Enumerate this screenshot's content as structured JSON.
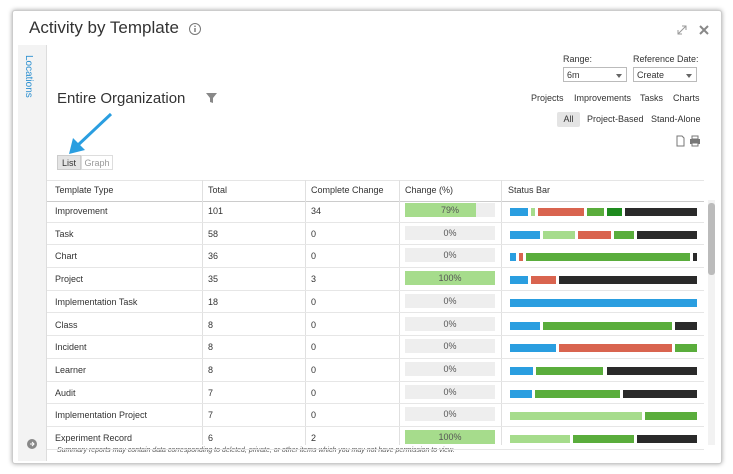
{
  "header": {
    "title": "Activity by Template"
  },
  "sidebar": {
    "label": "Locations"
  },
  "scope": {
    "title": "Entire Organization"
  },
  "controls": {
    "range_label": "Range:",
    "range_value": "6m",
    "reference_label": "Reference Date:",
    "reference_value": "Create",
    "links": [
      "Projects",
      "Improvements",
      "Tasks",
      "Charts"
    ],
    "filters": [
      "All",
      "Project-Based",
      "Stand-Alone"
    ]
  },
  "view_toggle": [
    "List",
    "Graph"
  ],
  "table": {
    "columns": [
      "Template Type",
      "Total",
      "Complete Change",
      "Change (%)",
      "Status Bar"
    ],
    "rows": [
      [
        "Improvement",
        "101",
        "34",
        "79%"
      ],
      [
        "Task",
        "58",
        "0",
        "0%"
      ],
      [
        "Chart",
        "36",
        "0",
        "0%"
      ],
      [
        "Project",
        "35",
        "3",
        "100%"
      ],
      [
        "Implementation Task",
        "18",
        "0",
        "0%"
      ],
      [
        "Class",
        "8",
        "0",
        "0%"
      ],
      [
        "Incident",
        "8",
        "0",
        "0%"
      ],
      [
        "Learner",
        "8",
        "0",
        "0%"
      ],
      [
        "Audit",
        "7",
        "0",
        "0%"
      ],
      [
        "Implementation Project",
        "7",
        "0",
        "0%"
      ],
      [
        "Experiment Record",
        "6",
        "2",
        "100%"
      ]
    ],
    "status_bars": [
      [
        {
          "color": "#2a9ee0",
          "value": 18
        },
        {
          "color": "#a6dc8c",
          "value": 4
        },
        {
          "color": "#d9644f",
          "value": 46
        },
        {
          "color": "#5aad3c",
          "value": 17
        },
        {
          "color": "#1e8a1e",
          "value": 14
        },
        {
          "color": "#2a2a2a",
          "value": 72
        }
      ],
      [
        {
          "color": "#2a9ee0",
          "value": 31
        },
        {
          "color": "#a6dc8c",
          "value": 32
        },
        {
          "color": "#d9644f",
          "value": 34
        },
        {
          "color": "#5aad3c",
          "value": 20
        },
        {
          "color": "#2a2a2a",
          "value": 61
        }
      ],
      [
        {
          "color": "#2a9ee0",
          "value": 6
        },
        {
          "color": "#d9644f",
          "value": 4
        },
        {
          "color": "#5aad3c",
          "value": 163
        },
        {
          "color": "#2a2a2a",
          "value": 4
        }
      ],
      [
        {
          "color": "#2a9ee0",
          "value": 17
        },
        {
          "color": "#d9644f",
          "value": 24
        },
        {
          "color": "#2a2a2a",
          "value": 132
        }
      ],
      [
        {
          "color": "#2a9ee0",
          "value": 187
        }
      ],
      [
        {
          "color": "#2a9ee0",
          "value": 30
        },
        {
          "color": "#5aad3c",
          "value": 129
        },
        {
          "color": "#2a2a2a",
          "value": 22
        }
      ],
      [
        {
          "color": "#2a9ee0",
          "value": 46
        },
        {
          "color": "#d9644f",
          "value": 114
        },
        {
          "color": "#5aad3c",
          "value": 22
        }
      ],
      [
        {
          "color": "#2a9ee0",
          "value": 23
        },
        {
          "color": "#5aad3c",
          "value": 67
        },
        {
          "color": "#2a2a2a",
          "value": 90
        }
      ],
      [
        {
          "color": "#2a9ee0",
          "value": 22
        },
        {
          "color": "#5aad3c",
          "value": 85
        },
        {
          "color": "#2a2a2a",
          "value": 74
        }
      ],
      [
        {
          "color": "#a6dc8c",
          "value": 131
        },
        {
          "color": "#5aad3c",
          "value": 52
        }
      ],
      [
        {
          "color": "#a6dc8c",
          "value": 60
        },
        {
          "color": "#5aad3c",
          "value": 61
        },
        {
          "color": "#2a2a2a",
          "value": 60
        }
      ]
    ]
  },
  "footnote": "Summary reports may contain data corresponding to deleted, private, or other items which you may not have permission to view."
}
